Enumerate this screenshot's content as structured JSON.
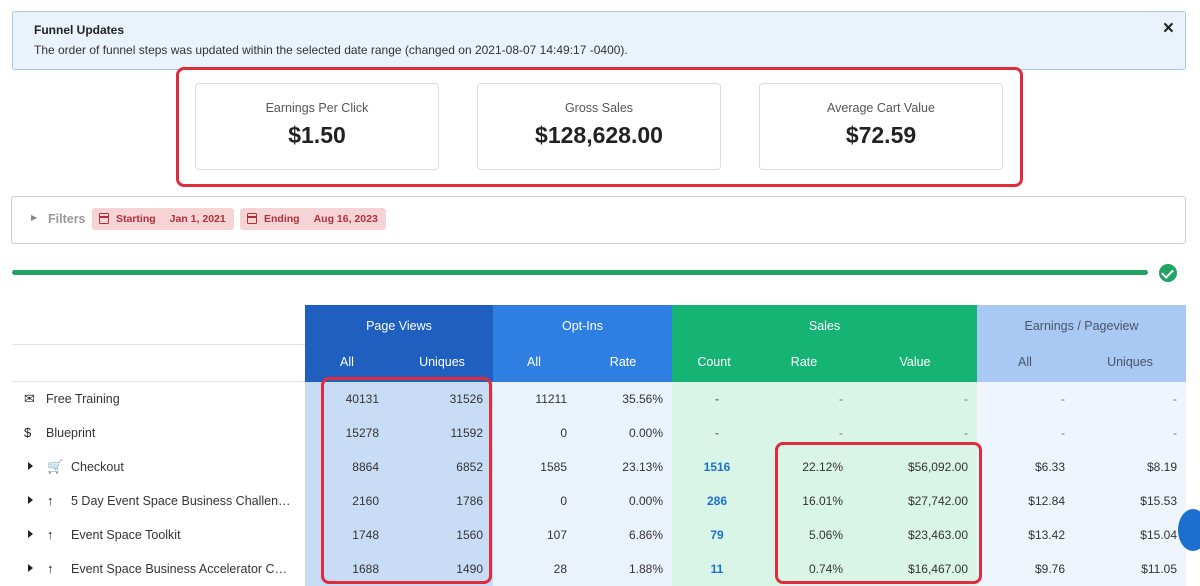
{
  "alert": {
    "title": "Funnel Updates",
    "message": "The order of funnel steps was updated within the selected date range (changed on 2021-08-07 14:49:17 -0400).",
    "close_label": "×"
  },
  "stats": [
    {
      "label": "Earnings Per Click",
      "value": "$1.50"
    },
    {
      "label": "Gross Sales",
      "value": "$128,628.00"
    },
    {
      "label": "Average Cart Value",
      "value": "$72.59"
    }
  ],
  "filters": {
    "label": "Filters",
    "starting_label": "Starting",
    "starting_value": "Jan 1, 2021",
    "ending_label": "Ending",
    "ending_value": "Aug 16, 2023"
  },
  "progress": 1.0,
  "table": {
    "groups": [
      {
        "title": "Page Views",
        "sub": [
          "All",
          "Uniques"
        ]
      },
      {
        "title": "Opt-Ins",
        "sub": [
          "All",
          "Rate"
        ]
      },
      {
        "title": "Sales",
        "sub": [
          "Count",
          "Rate",
          "Value"
        ]
      },
      {
        "title": "Earnings / Pageview",
        "sub": [
          "All",
          "Uniques"
        ]
      }
    ],
    "rows": [
      {
        "icon": "envelope-icon",
        "glyph": "✉",
        "expandable": false,
        "name": "Free Training",
        "pv_all": "40131",
        "pv_uniq": "31526",
        "opt_all": "11211",
        "opt_rate": "35.56%",
        "s_count": "-",
        "s_rate": "-",
        "s_value": "-",
        "e_all": "-",
        "e_uniq": "-"
      },
      {
        "icon": "dollar-icon",
        "glyph": "$",
        "expandable": false,
        "name": "Blueprint",
        "pv_all": "15278",
        "pv_uniq": "11592",
        "opt_all": "0",
        "opt_rate": "0.00%",
        "s_count": "-",
        "s_rate": "-",
        "s_value": "-",
        "e_all": "-",
        "e_uniq": "-"
      },
      {
        "icon": "cart-icon",
        "glyph": "🛒",
        "expandable": true,
        "name": "Checkout",
        "pv_all": "8864",
        "pv_uniq": "6852",
        "opt_all": "1585",
        "opt_rate": "23.13%",
        "s_count": "1516",
        "s_rate": "22.12%",
        "s_value": "$56,092.00",
        "e_all": "$6.33",
        "e_uniq": "$8.19"
      },
      {
        "icon": "arrow-up-icon",
        "glyph": "↑",
        "expandable": true,
        "name": "5 Day Event Space Business Challen…",
        "pv_all": "2160",
        "pv_uniq": "1786",
        "opt_all": "0",
        "opt_rate": "0.00%",
        "s_count": "286",
        "s_rate": "16.01%",
        "s_value": "$27,742.00",
        "e_all": "$12.84",
        "e_uniq": "$15.53"
      },
      {
        "icon": "arrow-up-icon",
        "glyph": "↑",
        "expandable": true,
        "name": "Event Space Toolkit",
        "pv_all": "1748",
        "pv_uniq": "1560",
        "opt_all": "107",
        "opt_rate": "6.86%",
        "s_count": "79",
        "s_rate": "5.06%",
        "s_value": "$23,463.00",
        "e_all": "$13.42",
        "e_uniq": "$15.04"
      },
      {
        "icon": "arrow-up-icon",
        "glyph": "↑",
        "expandable": true,
        "name": "Event Space Business Accelerator C…",
        "pv_all": "1688",
        "pv_uniq": "1490",
        "opt_all": "28",
        "opt_rate": "1.88%",
        "s_count": "11",
        "s_rate": "0.74%",
        "s_value": "$16,467.00",
        "e_all": "$9.76",
        "e_uniq": "$11.05"
      }
    ]
  },
  "colors": {
    "page_views_header": "#1f5fbf",
    "page_views_body": "#c9dcf6",
    "optins_header": "#2f7fe3",
    "optins_body": "#eaf2fc",
    "sales_header": "#15b374",
    "sales_body": "#d9f5e8",
    "earnings_header": "#a9c9f4",
    "earnings_body": "#eef5fd",
    "highlight": "#e02b3a"
  }
}
